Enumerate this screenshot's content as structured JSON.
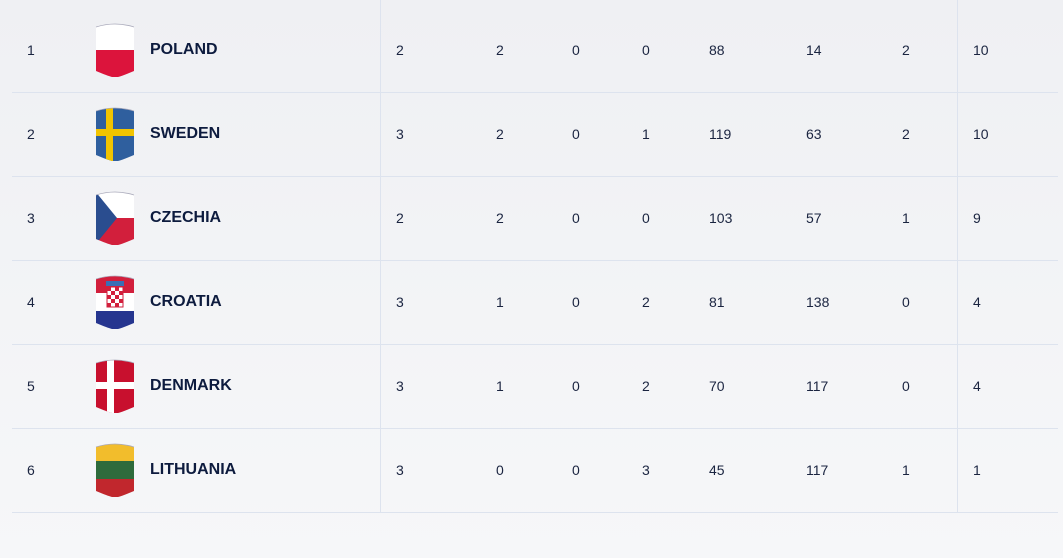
{
  "standings": [
    {
      "rank": "1",
      "country": "POLAND",
      "flag": "poland",
      "cols": [
        "2",
        "2",
        "0",
        "0",
        "88",
        "14",
        "2",
        "10"
      ]
    },
    {
      "rank": "2",
      "country": "SWEDEN",
      "flag": "sweden",
      "cols": [
        "3",
        "2",
        "0",
        "1",
        "119",
        "63",
        "2",
        "10"
      ]
    },
    {
      "rank": "3",
      "country": "CZECHIA",
      "flag": "czechia",
      "cols": [
        "2",
        "2",
        "0",
        "0",
        "103",
        "57",
        "1",
        "9"
      ]
    },
    {
      "rank": "4",
      "country": "CROATIA",
      "flag": "croatia",
      "cols": [
        "3",
        "1",
        "0",
        "2",
        "81",
        "138",
        "0",
        "4"
      ]
    },
    {
      "rank": "5",
      "country": "DENMARK",
      "flag": "denmark",
      "cols": [
        "3",
        "1",
        "0",
        "2",
        "70",
        "117",
        "0",
        "4"
      ]
    },
    {
      "rank": "6",
      "country": "LITHUANIA",
      "flag": "lithuania",
      "cols": [
        "3",
        "0",
        "0",
        "3",
        "45",
        "117",
        "1",
        "1"
      ]
    }
  ]
}
